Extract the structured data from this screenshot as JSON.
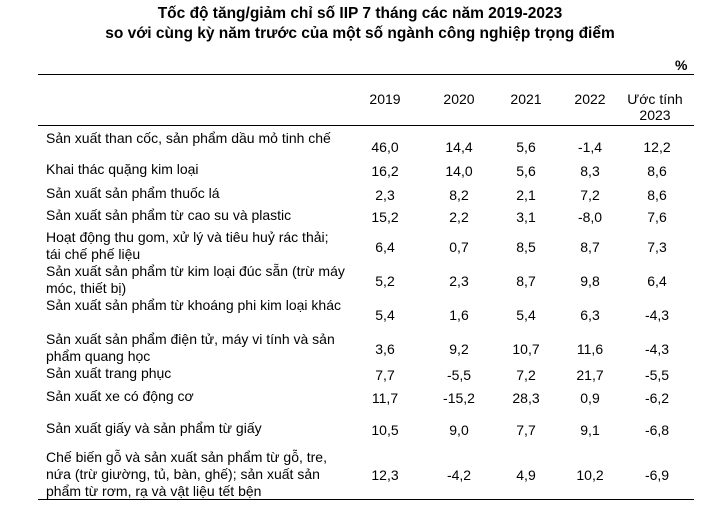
{
  "title_line1": "Tốc độ tăng/giảm chỉ số IIP 7 tháng các năm 2019-2023",
  "title_line2": "so với cùng kỳ năm trước của một số ngành công nghiệp trọng điểm",
  "unit": "%",
  "headers": [
    "2019",
    "2020",
    "2021",
    "2022",
    "Ước tính 2023"
  ],
  "rows": [
    {
      "label": "Sản xuất than cốc, sản phẩm dầu mỏ tinh chế",
      "values": [
        "46,0",
        "14,4",
        "5,6",
        "-1,4",
        "12,2"
      ]
    },
    {
      "label": "Khai thác quặng kim loại",
      "values": [
        "16,2",
        "14,0",
        "5,6",
        "8,3",
        "8,6"
      ]
    },
    {
      "label": "Sản xuất sản phẩm thuốc lá",
      "values": [
        "2,3",
        "8,2",
        "2,1",
        "7,2",
        "8,6"
      ]
    },
    {
      "label": "Sản xuất sản phẩm từ cao su và plastic",
      "values": [
        "15,2",
        "2,2",
        "3,1",
        "-8,0",
        "7,6"
      ]
    },
    {
      "label": "Hoạt động thu gom, xử lý và tiêu huỷ rác thải; tái chế phế liệu",
      "values": [
        "6,4",
        "0,7",
        "8,5",
        "8,7",
        "7,3"
      ]
    },
    {
      "label": "Sản xuất sản phẩm từ kim loại đúc sẵn (trừ máy móc, thiết bị)",
      "values": [
        "5,2",
        "2,3",
        "8,7",
        "9,8",
        "6,4"
      ]
    },
    {
      "label": "Sản xuất sản phẩm từ khoáng phi kim loại khác",
      "values": [
        "5,4",
        "1,6",
        "5,4",
        "6,3",
        "-4,3"
      ]
    },
    {
      "label": "Sản xuất sản phẩm điện tử, máy vi tính và sản phẩm quang học",
      "values": [
        "3,6",
        "9,2",
        "10,7",
        "11,6",
        "-4,3"
      ]
    },
    {
      "label": "Sản xuất trang phục",
      "values": [
        "7,7",
        "-5,5",
        "7,2",
        "21,7",
        "-5,5"
      ]
    },
    {
      "label": "Sản xuất xe có động cơ",
      "values": [
        "11,7",
        "-15,2",
        "28,3",
        "0,9",
        "-6,2"
      ]
    },
    {
      "label": "Sản xuất giấy và sản phẩm từ giấy",
      "values": [
        "10,5",
        "9,0",
        "7,7",
        "9,1",
        "-6,8"
      ]
    },
    {
      "label": "Chế biến gỗ và sản xuất sản phẩm từ gỗ, tre, nứa (trừ giường, tủ, bàn, ghế); sản xuất sản phẩm từ rơm, rạ và vật liệu tết bện",
      "values": [
        "12,3",
        "-4,2",
        "4,9",
        "10,2",
        "-6,9"
      ]
    }
  ]
}
